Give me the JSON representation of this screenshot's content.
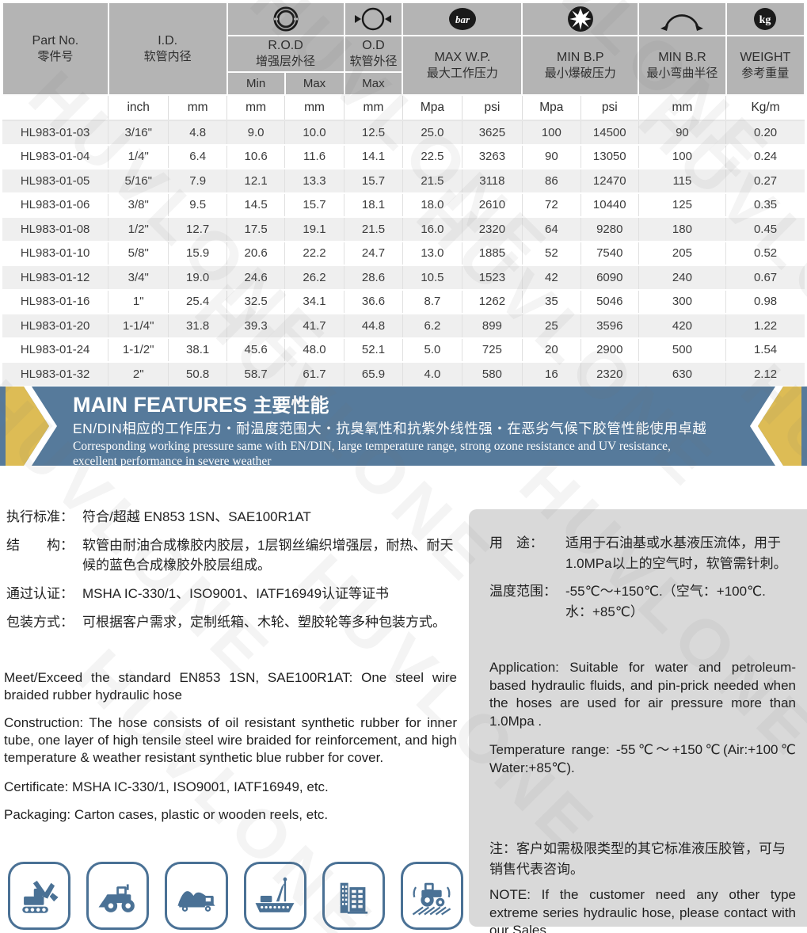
{
  "table": {
    "header": {
      "part_no": {
        "en": "Part No.",
        "zh": "零件号"
      },
      "id": {
        "en": "I.D.",
        "zh": "软管内径"
      },
      "rod": {
        "en": "R.O.D",
        "zh": "增强层外径",
        "sub_min": "Min",
        "sub_max": "Max"
      },
      "od": {
        "en": "O.D",
        "zh": "软管外径",
        "sub_max": "Max"
      },
      "max_wp": {
        "en": "MAX W.P.",
        "zh": "最大工作压力"
      },
      "min_bp": {
        "en": "MIN B.P",
        "zh": "最小爆破压力"
      },
      "min_br": {
        "en": "MIN B.R",
        "zh": "最小弯曲半径"
      },
      "weight": {
        "en": "WEIGHT",
        "zh": "参考重量"
      }
    },
    "icons": {
      "bar_label": "bar",
      "kg_label": "kg"
    },
    "units": [
      "",
      "inch",
      "mm",
      "mm",
      "mm",
      "mm",
      "Mpa",
      "psi",
      "Mpa",
      "psi",
      "mm",
      "Kg/m"
    ],
    "rows": [
      [
        "HL983-01-03",
        "3/16\"",
        "4.8",
        "9.0",
        "10.0",
        "12.5",
        "25.0",
        "3625",
        "100",
        "14500",
        "90",
        "0.20"
      ],
      [
        "HL983-01-04",
        "1/4\"",
        "6.4",
        "10.6",
        "11.6",
        "14.1",
        "22.5",
        "3263",
        "90",
        "13050",
        "100",
        "0.24"
      ],
      [
        "HL983-01-05",
        "5/16\"",
        "7.9",
        "12.1",
        "13.3",
        "15.7",
        "21.5",
        "3118",
        "86",
        "12470",
        "115",
        "0.27"
      ],
      [
        "HL983-01-06",
        "3/8\"",
        "9.5",
        "14.5",
        "15.7",
        "18.1",
        "18.0",
        "2610",
        "72",
        "10440",
        "125",
        "0.35"
      ],
      [
        "HL983-01-08",
        "1/2\"",
        "12.7",
        "17.5",
        "19.1",
        "21.5",
        "16.0",
        "2320",
        "64",
        "9280",
        "180",
        "0.45"
      ],
      [
        "HL983-01-10",
        "5/8\"",
        "15.9",
        "20.6",
        "22.2",
        "24.7",
        "13.0",
        "1885",
        "52",
        "7540",
        "205",
        "0.52"
      ],
      [
        "HL983-01-12",
        "3/4\"",
        "19.0",
        "24.6",
        "26.2",
        "28.6",
        "10.5",
        "1523",
        "42",
        "6090",
        "240",
        "0.67"
      ],
      [
        "HL983-01-16",
        "1\"",
        "25.4",
        "32.5",
        "34.1",
        "36.6",
        "8.7",
        "1262",
        "35",
        "5046",
        "300",
        "0.98"
      ],
      [
        "HL983-01-20",
        "1-1/4\"",
        "31.8",
        "39.3",
        "41.7",
        "44.8",
        "6.2",
        "899",
        "25",
        "3596",
        "420",
        "1.22"
      ],
      [
        "HL983-01-24",
        "1-1/2\"",
        "38.1",
        "45.6",
        "48.0",
        "52.1",
        "5.0",
        "725",
        "20",
        "2900",
        "500",
        "1.54"
      ],
      [
        "HL983-01-32",
        "2\"",
        "50.8",
        "58.7",
        "61.7",
        "65.9",
        "4.0",
        "580",
        "16",
        "2320",
        "630",
        "2.12"
      ]
    ]
  },
  "banner": {
    "title_en": "MAIN FEATURES",
    "title_zh": "主要性能",
    "line_zh": "EN/DIN相应的工作压力・耐温度范围大・抗臭氧性和抗紫外线性强・在恶劣气候下胶管性能使用卓越",
    "line_en": "Corresponding working pressure same with EN/DIN,  large temperature range, strong ozone resistance and UV resistance,\nexcellent performance in severe weather"
  },
  "specs_zh": [
    {
      "label": "执行标准：",
      "text": "符合/超越 EN853 1SN、SAE100R1AT"
    },
    {
      "label": "结　　构：",
      "text": "软管由耐油合成橡胶内胶层，1层钢丝编织增强层，耐热、耐天候的蓝色合成橡胶外胶层组成。"
    },
    {
      "label": "通过认证：",
      "text": "MSHA IC-330/1、ISO9001、IATF16949认证等证书"
    },
    {
      "label": "包装方式：",
      "text": "可根据客户需求，定制纸箱、木轮、塑胶轮等多种包装方式。"
    }
  ],
  "specs_en": [
    "Meet/Exceed the standard EN853 1SN, SAE100R1AT: One steel wire braided rubber hydraulic hose",
    "Construction:  The hose consists of oil resistant synthetic rubber for inner tube, one layer of high tensile steel wire braided for reinforcement, and high temperature & weather resistant synthetic blue rubber for cover.",
    "Certificate: MSHA IC-330/1, ISO9001, IATF16949,  etc.",
    "Packaging: Carton cases, plastic or wooden reels, etc."
  ],
  "panel": {
    "zh_items": [
      {
        "label": "用　途：",
        "text": "适用于石油基或水基液压流体，用于\n1.0MPa以上的空气时，软管需针刺。"
      },
      {
        "label": "温度范围：",
        "text": "-55℃～+150℃.（空气：+100℃.\n水：+85℃）"
      }
    ],
    "application_en": "Application: Suitable for water and petroleum-based hydraulic fluids, and pin-prick needed when the hoses are used for air pressure more than 1.0Mpa .",
    "temperature_en": "Temperature range: -55℃～+150℃(Air:+100℃ Water:+85℃).",
    "note_zh": "注：客户如需极限类型的其它标准液压胶管，可与\n销售代表咨询。",
    "note_en": "NOTE: If the customer need any other type extreme series hydraulic hose, please contact with our Sales."
  },
  "app_icons": [
    {
      "name": "excavator-icon"
    },
    {
      "name": "wheel-loader-icon"
    },
    {
      "name": "dump-truck-icon"
    },
    {
      "name": "cargo-ship-icon"
    },
    {
      "name": "buildings-icon"
    },
    {
      "name": "tractor-icon"
    }
  ],
  "watermarks": {
    "text": "HUVLONE",
    "positions": [
      [
        -20,
        230
      ],
      [
        260,
        110
      ],
      [
        540,
        -10
      ],
      [
        820,
        -130
      ],
      [
        -90,
        620
      ],
      [
        190,
        500
      ],
      [
        470,
        380
      ],
      [
        750,
        260
      ],
      [
        40,
        960
      ],
      [
        320,
        840
      ],
      [
        600,
        720
      ],
      [
        880,
        600
      ]
    ]
  },
  "colors": {
    "banner_blue": "#567a9b",
    "gold": "#ddbc55",
    "panel_gray": "#d9d9d9",
    "header_gray": "#b4b4b4",
    "row_alt": "#efefef",
    "icon_blue": "#4a7195",
    "icon_black": "#1a1a1a"
  }
}
